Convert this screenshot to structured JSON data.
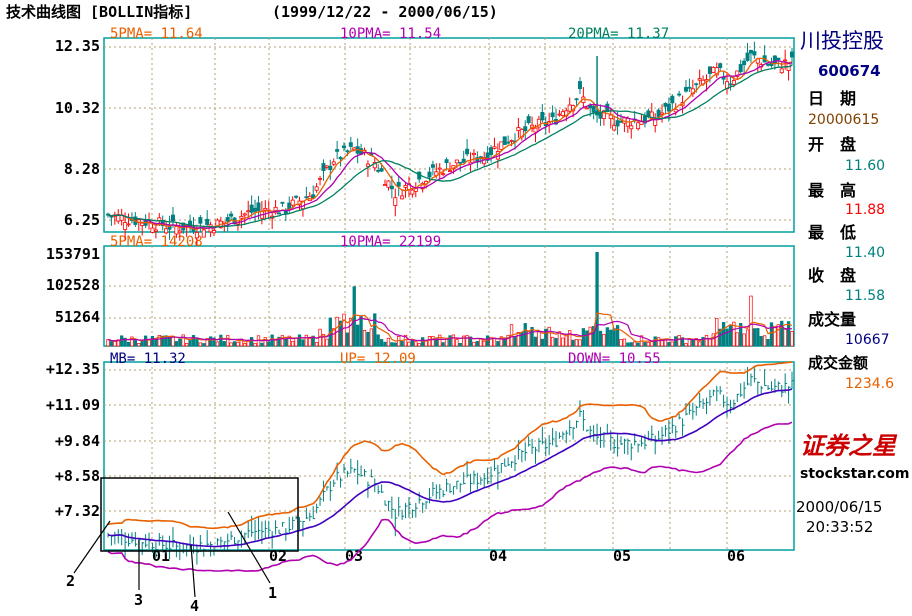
{
  "header": {
    "title": "技术曲线图 [BOLLIN指标]",
    "date_range": "(1999/12/22 - 2000/06/15)"
  },
  "side_panel": {
    "stock_name": "川投控股",
    "stock_code": "600674",
    "date_label": "日　期",
    "date_value": "20000615",
    "open_label": "开　盘",
    "open_value": "11.60",
    "high_label": "最　高",
    "high_value": "11.88",
    "low_label": "最　低",
    "low_value": "11.40",
    "close_label": "收　盘",
    "close_value": "11.58",
    "volume_label": "成交量",
    "volume_value": "10667",
    "amount_label": "成交金额",
    "amount_value": "1234.6",
    "logo_text": "证券之星",
    "site": "stockstar.com",
    "clock_date": "2000/06/15",
    "clock_time": "20:33:52"
  },
  "colors": {
    "frame": "#00a0a0",
    "grid": "#b0a070",
    "up": "#ff0000",
    "down": "#008080",
    "ma5": "#e86000",
    "ma10": "#b000b0",
    "ma20": "#008060",
    "mb": "#4000c0",
    "upband": "#e86000",
    "downband": "#b000b0",
    "navy": "#000080",
    "brown": "#804000",
    "teal": "#008080",
    "red": "#ff0000"
  },
  "chart_data": [
    {
      "type": "candlestick",
      "panel": "price",
      "labels": [
        {
          "text": "5PMA= 11.64",
          "color": "ma5"
        },
        {
          "text": "10PMA= 11.54",
          "color": "ma10"
        },
        {
          "text": "20PMA= 11.37",
          "color": "ma20"
        }
      ],
      "yticks": [
        "12.35",
        "10.32",
        "8.28",
        "6.25"
      ],
      "ylim": [
        6.25,
        12.35
      ],
      "xticks": [
        "01",
        "02",
        "03",
        "04",
        "05",
        "06"
      ],
      "series": [
        {
          "name": "5PMA",
          "color": "ma5"
        },
        {
          "name": "10PMA",
          "color": "ma10"
        },
        {
          "name": "20PMA",
          "color": "ma20"
        }
      ]
    },
    {
      "type": "bar",
      "panel": "volume",
      "labels": [
        {
          "text": "5PMA= 14208",
          "color": "ma5"
        },
        {
          "text": "10PMA= 22199",
          "color": "ma10"
        }
      ],
      "yticks": [
        "153791",
        "102528",
        "51264"
      ],
      "ylim": [
        0,
        153791
      ]
    },
    {
      "type": "line",
      "panel": "bollinger",
      "labels": [
        {
          "text": "MB= 11.32",
          "color": "navy"
        },
        {
          "text": "UP= 12.09",
          "color": "upband"
        },
        {
          "text": "DOWN= 10.55",
          "color": "downband"
        }
      ],
      "yticks": [
        "+12.35",
        "+11.09",
        "+9.84",
        "+8.58",
        "+7.32"
      ],
      "ylim": [
        6.3,
        12.35
      ],
      "xticks": [
        "01",
        "02",
        "03",
        "04",
        "05",
        "06"
      ],
      "series": [
        {
          "name": "MB",
          "color": "mb"
        },
        {
          "name": "UP",
          "color": "upband"
        },
        {
          "name": "DOWN",
          "color": "downband"
        }
      ]
    }
  ],
  "annotations": [
    "1",
    "2",
    "3",
    "4"
  ]
}
